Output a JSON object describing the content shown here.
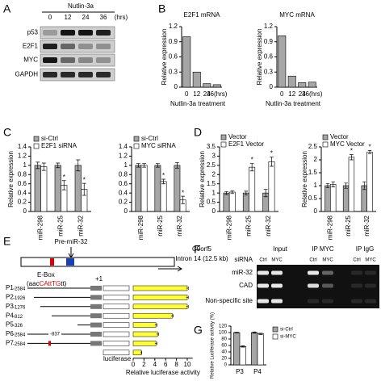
{
  "panels": [
    "A",
    "B",
    "C",
    "D",
    "E",
    "F",
    "G"
  ],
  "blot_a": {
    "treatment": "Nutlin-3a",
    "lanes": [
      "0",
      "12",
      "24",
      "36"
    ],
    "unit": "(hrs)",
    "rows": [
      "p53",
      "E2F1",
      "MYC",
      "GAPDH"
    ]
  },
  "chart_data": [
    {
      "type": "bar",
      "title": "E2F1 mRNA",
      "categories": [
        "0",
        "12",
        "24",
        "36(hrs)"
      ],
      "values": [
        1.0,
        0.3,
        0.07,
        0.05
      ],
      "color": "#a6a6a6",
      "ylim": [
        0,
        1.2
      ],
      "yticks": [
        0,
        0.3,
        0.6,
        0.9,
        1.2
      ],
      "ylabel": "Relative expression",
      "xlabel": "Nutlin-3a treatment"
    },
    {
      "type": "bar",
      "title": "MYC mRNA",
      "categories": [
        "0",
        "12",
        "24",
        "36(hrs)"
      ],
      "values": [
        1.02,
        0.22,
        0.09,
        0.1
      ],
      "color": "#a6a6a6",
      "ylim": [
        0,
        1.2
      ],
      "yticks": [
        0,
        0.3,
        0.6,
        0.9,
        1.2
      ],
      "ylabel": "Relative expression",
      "xlabel": "Nutlin-3a treatment"
    },
    {
      "type": "bar",
      "categories": [
        "miR-298",
        "miR-25",
        "miR-32"
      ],
      "ylim": [
        0,
        1.4
      ],
      "yticks": [
        0,
        0.2,
        0.4,
        0.6,
        0.8,
        1,
        1.2,
        1.4
      ],
      "ylabel": "Relative expression",
      "series": [
        {
          "name": "si-Ctrl",
          "color": "#a6a6a6",
          "values": [
            1.0,
            1.0,
            1.0
          ],
          "errors": [
            0.07,
            0.05,
            0.12
          ]
        },
        {
          "name": "E2F1 siRNA",
          "color": "#ffffff",
          "values": [
            0.97,
            0.57,
            0.48
          ],
          "errors": [
            0.08,
            0.1,
            0.13
          ],
          "markers": [
            null,
            "*",
            "*"
          ]
        }
      ]
    },
    {
      "type": "bar",
      "categories": [
        "miR-298",
        "miR-25",
        "miR-32"
      ],
      "ylim": [
        0,
        1.4
      ],
      "yticks": [
        0,
        0.2,
        0.4,
        0.6,
        0.8,
        1,
        1.2,
        1.4
      ],
      "series": [
        {
          "name": "si-Ctrl",
          "color": "#a6a6a6",
          "values": [
            1.0,
            1.0,
            1.0
          ],
          "errors": [
            0.04,
            0.04,
            0.06
          ]
        },
        {
          "name": "MYC siRNA",
          "color": "#ffffff",
          "values": [
            1.0,
            0.65,
            0.25
          ],
          "errors": [
            0.04,
            0.05,
            0.08
          ],
          "markers": [
            null,
            "*",
            "*"
          ]
        }
      ]
    },
    {
      "type": "bar",
      "categories": [
        "miR-298",
        "miR-25",
        "miR-32"
      ],
      "ylim": [
        0,
        3.5
      ],
      "yticks": [
        0,
        0.5,
        1,
        1.5,
        2,
        2.5,
        3,
        3.5
      ],
      "ylabel": "Relative expression",
      "series": [
        {
          "name": "Vector",
          "color": "#a6a6a6",
          "values": [
            1.0,
            1.0,
            1.0
          ],
          "errors": [
            0.08,
            0.1,
            0.2
          ]
        },
        {
          "name": "E2F1 Vector",
          "color": "#ffffff",
          "values": [
            1.05,
            2.4,
            2.7
          ],
          "errors": [
            0.08,
            0.2,
            0.25
          ],
          "markers": [
            null,
            "*",
            "*"
          ]
        }
      ]
    },
    {
      "type": "bar",
      "categories": [
        "miR-298",
        "miR-25",
        "miR-32"
      ],
      "ylim": [
        0,
        2.5
      ],
      "yticks": [
        0,
        0.5,
        1,
        1.5,
        2,
        2.5
      ],
      "ylabel": "Relative expression",
      "series": [
        {
          "name": "Vector",
          "color": "#a6a6a6",
          "values": [
            1.0,
            1.0,
            1.0
          ],
          "errors": [
            0.08,
            0.1,
            0.15
          ]
        },
        {
          "name": "MYC Vector",
          "color": "#ffffff",
          "values": [
            1.05,
            2.1,
            2.3
          ],
          "errors": [
            0.1,
            0.1,
            0.06
          ],
          "markers": [
            null,
            "*",
            "*"
          ]
        }
      ]
    },
    {
      "type": "barh",
      "categories": [
        "P1",
        "P2",
        "P3",
        "P4",
        "P5",
        "P6",
        "P7",
        "luciferase"
      ],
      "starts": [
        "-2584",
        "-1926",
        "-1276",
        "-812",
        "-326",
        "-2584",
        "-2584",
        null
      ],
      "ends": [
        null,
        null,
        null,
        null,
        null,
        "-837",
        null,
        null
      ],
      "values": [
        10.0,
        10.0,
        10.0,
        7.2,
        4.2,
        4.5,
        4.2,
        1.5
      ],
      "errors": [
        0.2,
        0.2,
        0.2,
        0.2,
        0.2,
        0.2,
        0.2,
        0.1
      ],
      "color": "#ffff33",
      "xlim": [
        0,
        11
      ],
      "xticks": [
        0,
        2,
        4,
        6,
        8,
        10
      ],
      "xlabel": "Relative luciferase activity"
    },
    {
      "type": "bar",
      "categories": [
        "P3",
        "P4"
      ],
      "ylim": [
        0,
        120
      ],
      "yticks": [
        0,
        20,
        40,
        60,
        80,
        100,
        120
      ],
      "ylabel": "Relative Luciferase activity (%)",
      "series": [
        {
          "name": "si-Ctrl",
          "color": "#a6a6a6",
          "values": [
            100,
            100
          ],
          "errors": [
            1,
            2
          ]
        },
        {
          "name": "si-MYC",
          "color": "#ffffff",
          "values": [
            57,
            96
          ],
          "errors": [
            2,
            2
          ]
        }
      ]
    }
  ],
  "diagram_e": {
    "precursor": "Pre-miR-32",
    "gene": "C9orf5",
    "intron": "Intron 14 (12.5 kb)",
    "ebox": "E-Box",
    "motif": [
      "(aac",
      "CAttTG",
      "tt)"
    ],
    "tss": "+1"
  },
  "blot_f": {
    "headers": [
      "Input",
      "IP MYC",
      "IP IgG"
    ],
    "sirna_label": "siRNA",
    "lanes": [
      "Ctrl",
      "MYC",
      "Ctrl",
      "MYC",
      "Ctrl",
      "MYC"
    ],
    "rows": [
      "miR-32",
      "CAD",
      "Non-specific site"
    ]
  }
}
